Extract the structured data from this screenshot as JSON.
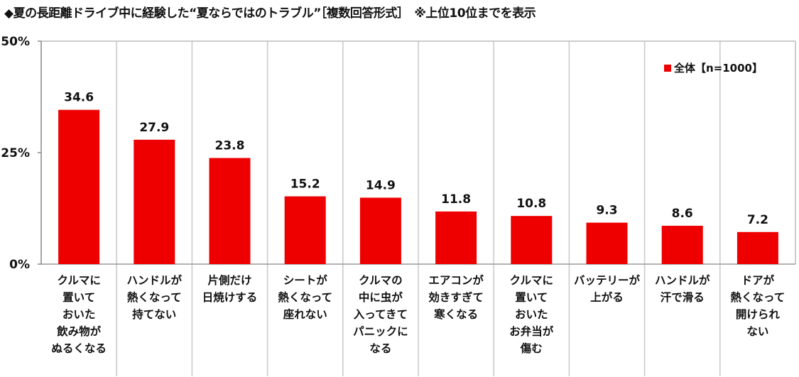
{
  "title": "◆夏の長距離ドライブ中に経験した“夏ならではのトラブル”［複数回答形式］　※上位10位までを表示",
  "chart_data": {
    "type": "bar",
    "title": "◆夏の長距離ドライブ中に経験した“夏ならではのトラブル”［複数回答形式］　※上位10位までを表示",
    "xlabel": "",
    "ylabel": "",
    "ylim": [
      0,
      50
    ],
    "yticks": [
      "0%",
      "25%",
      "50%"
    ],
    "ytick_values": [
      0,
      25,
      50
    ],
    "grid": "vertical separators between categories",
    "legend_position": "top-right",
    "categories": [
      [
        "クルマに",
        "置いて",
        "おいた",
        "飲み物が",
        "ぬるくなる"
      ],
      [
        "ハンドルが",
        "熱くなって",
        "持てない"
      ],
      [
        "片側だけ",
        "日焼けする"
      ],
      [
        "シートが",
        "熱くなって",
        "座れない"
      ],
      [
        "クルマの",
        "中に虫が",
        "入ってきて",
        "パニックに",
        "なる"
      ],
      [
        "エアコンが",
        "効きすぎて",
        "寒くなる"
      ],
      [
        "クルマに",
        "置いて",
        "おいた",
        "お弁当が",
        "傷む"
      ],
      [
        "バッテリーが",
        "上がる"
      ],
      [
        "ハンドルが",
        "汗で滑る"
      ],
      [
        "ドアが",
        "熱くなって",
        "開けられ",
        "ない"
      ]
    ],
    "series": [
      {
        "name": "全体【n=1000】",
        "color": "#ee0000",
        "values": [
          34.6,
          27.9,
          23.8,
          15.2,
          14.9,
          11.8,
          10.8,
          9.3,
          8.6,
          7.2
        ],
        "labels": [
          "34.6",
          "27.9",
          "23.8",
          "15.2",
          "14.9",
          "11.8",
          "10.8",
          "9.3",
          "8.6",
          "7.2"
        ]
      }
    ]
  }
}
